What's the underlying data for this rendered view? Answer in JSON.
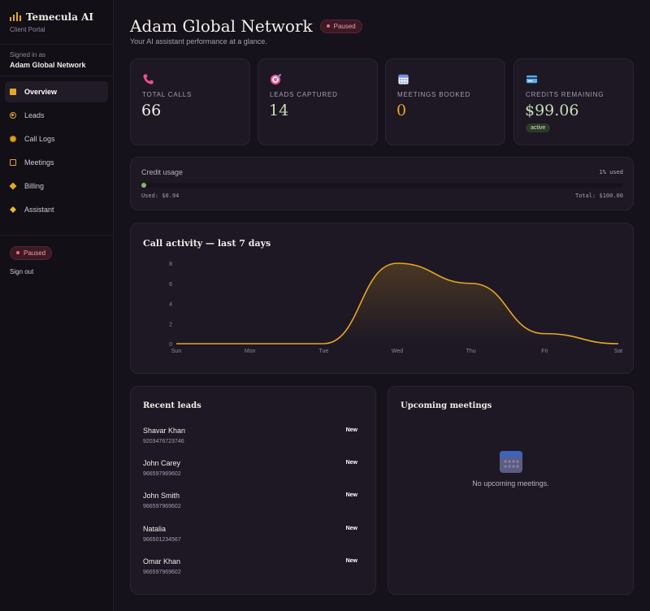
{
  "brand": {
    "name": "Temecula AI",
    "subtitle": "Client Portal"
  },
  "account": {
    "signed_in_label": "Signed in as",
    "name": "Adam Global Network"
  },
  "nav": [
    {
      "label": "Overview",
      "icon": "overview-icon",
      "active": true
    },
    {
      "label": "Leads",
      "icon": "target-icon"
    },
    {
      "label": "Call Logs",
      "icon": "phone-log-icon"
    },
    {
      "label": "Meetings",
      "icon": "calendar-icon"
    },
    {
      "label": "Billing",
      "icon": "billing-icon"
    },
    {
      "label": "Assistant",
      "icon": "sparkle-icon"
    }
  ],
  "sidebar_footer": {
    "status": "Paused",
    "sign_out": "Sign out"
  },
  "header": {
    "title": "Adam Global Network",
    "status": "Paused",
    "subtitle": "Your AI assistant performance at a glance."
  },
  "stats": [
    {
      "label": "TOTAL CALLS",
      "value": "66",
      "icon": "phone-icon",
      "value_color": "#f1ece6"
    },
    {
      "label": "LEADS CAPTURED",
      "value": "14",
      "icon": "target-icon",
      "value_color": "#c8dcb6"
    },
    {
      "label": "MEETINGS BOOKED",
      "value": "0",
      "icon": "calendar-icon",
      "value_color": "#e6a623"
    },
    {
      "label": "CREDITS REMAINING",
      "value": "$99.06",
      "icon": "credit-card-icon",
      "value_color": "#c8dcb6",
      "badge": "active"
    }
  ],
  "credit_usage": {
    "label": "Credit usage",
    "percent_text": "1% used",
    "used_fraction": 0.01,
    "used_text": "Used: $0.94",
    "total_text": "Total: $100.00"
  },
  "activity": {
    "title": "Call activity — last 7 days"
  },
  "chart_data": {
    "type": "area",
    "title": "Call activity — last 7 days",
    "categories": [
      "Sun",
      "Mon",
      "Tue",
      "Wed",
      "Thu",
      "Fri",
      "Sat"
    ],
    "values": [
      0,
      0,
      0,
      8,
      6,
      1,
      0
    ],
    "yticks": [
      0,
      2,
      4,
      6,
      8
    ],
    "ylim": [
      0,
      8
    ],
    "line_color": "#e6a623",
    "grid": false
  },
  "recent_leads": {
    "title": "Recent leads",
    "items": [
      {
        "name": "Shavar Khan",
        "phone": "9203476723746",
        "status": "New"
      },
      {
        "name": "John Carey",
        "phone": "966597969602",
        "status": "New"
      },
      {
        "name": "John Smith",
        "phone": "966597969602",
        "status": "New"
      },
      {
        "name": "Natalia",
        "phone": "966501234567",
        "status": "New"
      },
      {
        "name": "Omar Khan",
        "phone": "966597969602",
        "status": "New"
      }
    ]
  },
  "meetings": {
    "title": "Upcoming meetings",
    "empty_text": "No upcoming meetings."
  }
}
